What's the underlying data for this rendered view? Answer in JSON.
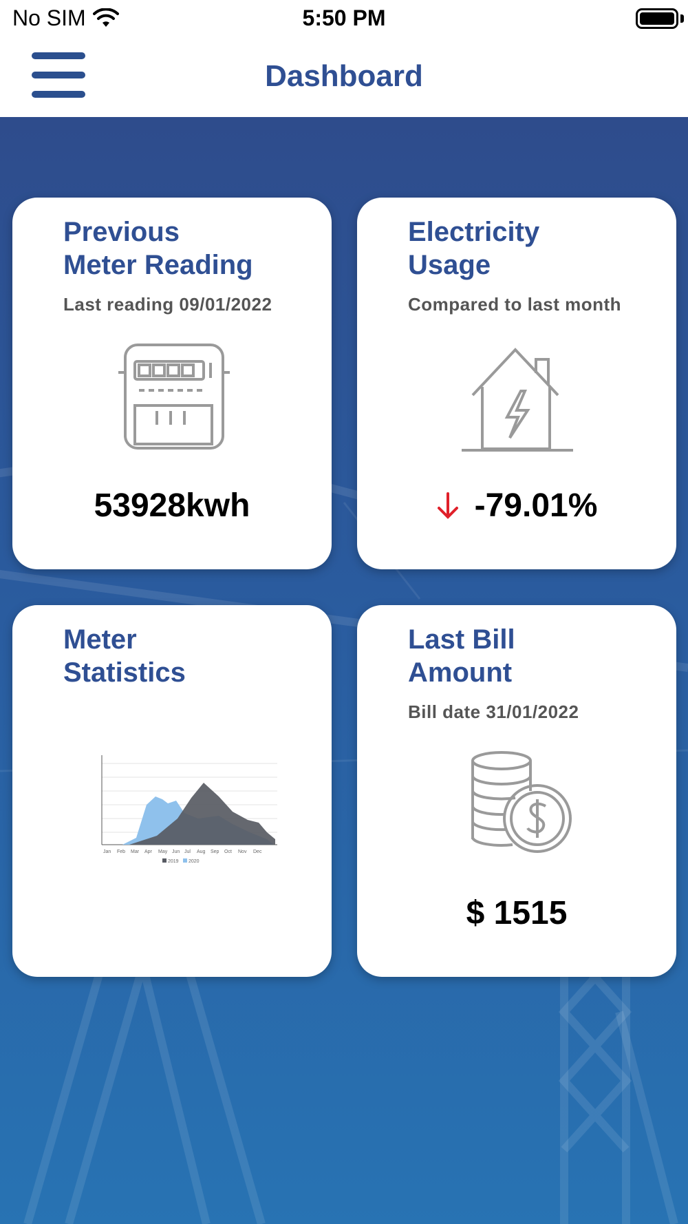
{
  "status_bar": {
    "carrier": "No SIM",
    "time": "5:50 PM"
  },
  "nav": {
    "title": "Dashboard"
  },
  "cards": {
    "meter_reading": {
      "title_line1": "Previous",
      "title_line2": "Meter Reading",
      "subtitle": "Last reading 09/01/2022",
      "value": "53928kwh",
      "icon": "electric-meter-icon"
    },
    "usage": {
      "title_line1": "Electricity",
      "title_line2": "Usage",
      "subtitle": "Compared to last month",
      "value": "-79.01%",
      "trend": "down",
      "trend_color": "#e0202a",
      "icon": "house-lightning-icon"
    },
    "statistics": {
      "title_line1": "Meter",
      "title_line2": "Statistics",
      "icon": "statistics-chart-thumbnail"
    },
    "bill": {
      "title_line1": "Last Bill",
      "title_line2": "Amount",
      "subtitle": "Bill date 31/01/2022",
      "value": "$ 1515",
      "icon": "coins-dollar-icon"
    }
  },
  "colors": {
    "accent": "#2f4f93",
    "background_top": "#2e4c8c",
    "background_bottom": "#2873b3",
    "card": "#ffffff"
  }
}
